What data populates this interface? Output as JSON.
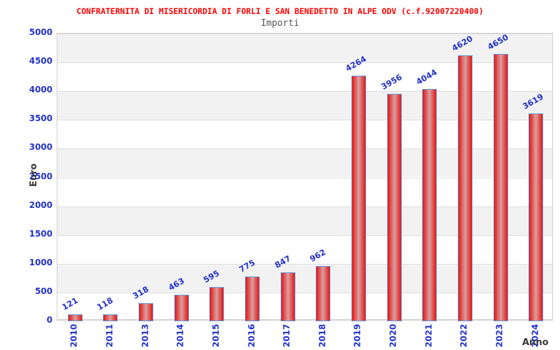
{
  "header": {
    "title": "CONFRATERNITA DI MISERICORDIA DI FORLI E SAN BENEDETTO IN ALPE ODV (c.f.92007220400)",
    "subtitle": "Importi"
  },
  "chart_data": {
    "type": "bar",
    "title": "CONFRATERNITA DI MISERICORDIA DI FORLI E SAN BENEDETTO IN ALPE ODV (c.f.92007220400)",
    "subtitle": "Importi",
    "categories": [
      "2010",
      "2011",
      "2013",
      "2014",
      "2015",
      "2016",
      "2017",
      "2018",
      "2019",
      "2020",
      "2021",
      "2022",
      "2023",
      "2024"
    ],
    "values": [
      121,
      118,
      318,
      463,
      595,
      775,
      847,
      962,
      4264,
      3956,
      4044,
      4620,
      4650,
      3619
    ],
    "xlabel": "Anno",
    "ylabel": "Euro",
    "ylim": [
      0,
      5000
    ],
    "ytick_step": 500,
    "grid": "horizontal-bands-alternating",
    "legend": "none",
    "value_labels": "rotated-above-bars",
    "colors": {
      "title": "#ff0000",
      "subtitle": "#555555",
      "tick_label": "#2233cc",
      "value_label": "#2233cc",
      "axis_label": "#3a3a3a",
      "bar_edge": "#e81414",
      "bar_center": "#d7a0a0",
      "bar_border": "#64a2e0",
      "band_gray": "#f2f2f2",
      "band_white": "#ffffff",
      "gridline": "#dedede"
    }
  }
}
